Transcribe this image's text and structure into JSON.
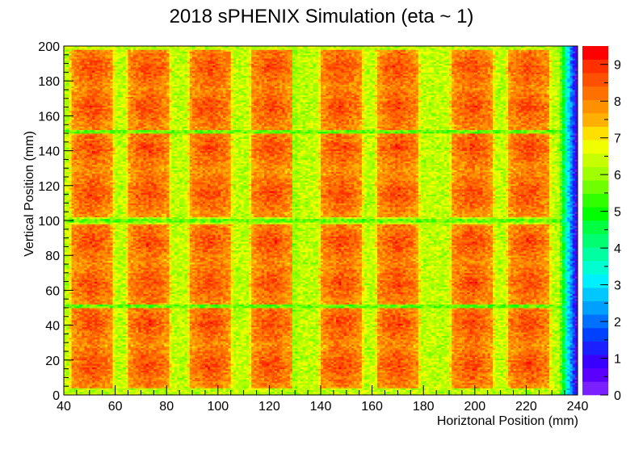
{
  "chart_data": {
    "type": "heatmap",
    "title": "2018 sPHENIX Simulation (eta ~ 1)",
    "xlabel": "Horiztonal Position (mm)",
    "ylabel": "Vertical Position (mm)",
    "xlim": [
      40,
      240
    ],
    "ylim": [
      0,
      200
    ],
    "zlim": [
      0,
      9.5
    ],
    "x_ticks": [
      "40",
      "60",
      "80",
      "100",
      "120",
      "140",
      "160",
      "180",
      "200",
      "220",
      "240"
    ],
    "y_ticks": [
      "0",
      "20",
      "40",
      "60",
      "80",
      "100",
      "120",
      "140",
      "160",
      "180",
      "200"
    ],
    "z_ticks": [
      "0",
      "1",
      "2",
      "3",
      "4",
      "5",
      "6",
      "7",
      "8",
      "9"
    ],
    "tower_centers_x": [
      51,
      73,
      97,
      121,
      148,
      170,
      199,
      221
    ],
    "tower_half_width_x": 7.5,
    "lobe_centers_y": [
      17,
      41,
      64,
      88,
      116,
      142,
      165,
      188
    ],
    "tower_band_edges_y": [
      [
        4,
        50
      ],
      [
        52,
        98
      ],
      [
        102,
        150
      ],
      [
        152,
        198
      ]
    ],
    "gap_lines_y": [
      51,
      100,
      151
    ],
    "gap_lines_x": [
      130
    ],
    "values": {
      "tower_peak": 8.5,
      "tower_edge": 7.0,
      "background": 6.3,
      "gap_line": 5.6,
      "right_edge_falloff_start_x": 233,
      "right_edge_min": 0.5
    },
    "palette": [
      "#7a1fff",
      "#5b00ff",
      "#3a00ff",
      "#1a20ff",
      "#0040ff",
      "#0070ff",
      "#00a0ff",
      "#00c8ff",
      "#00f0ff",
      "#00ffd0",
      "#00ffa0",
      "#00ff70",
      "#00ff40",
      "#00ff00",
      "#30ff00",
      "#70ff00",
      "#a0ff00",
      "#c8ff00",
      "#f0ff00",
      "#ffe000",
      "#ffb000",
      "#ff9000",
      "#ff7000",
      "#ff5000",
      "#ff3000",
      "#ff0000"
    ]
  }
}
